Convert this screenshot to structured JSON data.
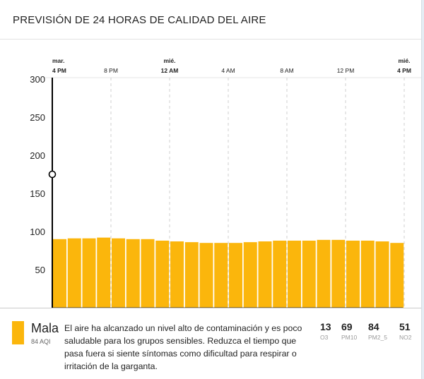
{
  "title": "PREVISIÓN DE 24 HORAS DE CALIDAD DEL AIRE",
  "colors": {
    "bar": "#fbb60c",
    "grid": "#cfcfcf",
    "axis": "#000000"
  },
  "chart_data": {
    "type": "bar",
    "x_ticks": [
      {
        "day": "mar.",
        "time": "4 PM",
        "bold": true,
        "index": 0
      },
      {
        "day": "",
        "time": "8 PM",
        "bold": false,
        "index": 4
      },
      {
        "day": "mié.",
        "time": "12 AM",
        "bold": true,
        "index": 8
      },
      {
        "day": "",
        "time": "4 AM",
        "bold": false,
        "index": 12
      },
      {
        "day": "",
        "time": "8 AM",
        "bold": false,
        "index": 16
      },
      {
        "day": "",
        "time": "12 PM",
        "bold": false,
        "index": 20
      },
      {
        "day": "mié.",
        "time": "4 PM",
        "bold": true,
        "index": 24
      }
    ],
    "y_ticks": [
      50,
      100,
      150,
      200,
      250,
      300
    ],
    "ylim": [
      0,
      300
    ],
    "values": [
      90,
      91,
      91,
      92,
      91,
      90,
      90,
      88,
      87,
      86,
      85,
      85,
      85,
      86,
      87,
      88,
      88,
      88,
      89,
      89,
      88,
      88,
      87,
      85
    ],
    "marker_value": 175,
    "grid": true
  },
  "summary": {
    "level": "Mala",
    "aqi": "84 AQI",
    "description": "El aire ha alcanzado un nivel alto de contaminación y es poco saludable para los grupos sensibles. Reduzca el tiempo que pasa fuera si siente síntomas como dificultad para respirar o irritación de la garganta."
  },
  "pollutants": [
    {
      "value": "13",
      "name": "O3"
    },
    {
      "value": "69",
      "name": "PM10"
    },
    {
      "value": "84",
      "name": "PM2_5"
    },
    {
      "value": "51",
      "name": "NO2"
    }
  ]
}
